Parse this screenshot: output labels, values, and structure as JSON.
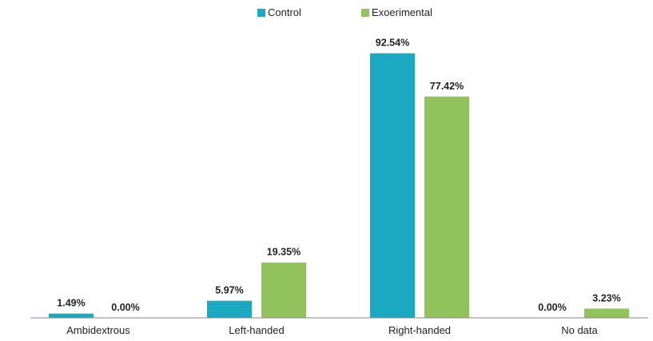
{
  "chart_data": {
    "type": "bar",
    "categories": [
      "Ambidextrous",
      "Left-handed",
      "Right-handed",
      "No data"
    ],
    "series": [
      {
        "name": "Control",
        "color": "#1aa9c0",
        "values": [
          1.49,
          5.97,
          92.54,
          0.0
        ],
        "labels": [
          "1.49%",
          "5.97%",
          "92.54%",
          "0.00%"
        ]
      },
      {
        "name": "Exoerimental",
        "color": "#92c25c",
        "values": [
          0.0,
          19.35,
          77.42,
          3.23
        ],
        "labels": [
          "0.00%",
          "19.35%",
          "77.42%",
          "3.23%"
        ]
      }
    ],
    "ylim": [
      0,
      100
    ],
    "grid": false,
    "legend_position": "top-center"
  }
}
